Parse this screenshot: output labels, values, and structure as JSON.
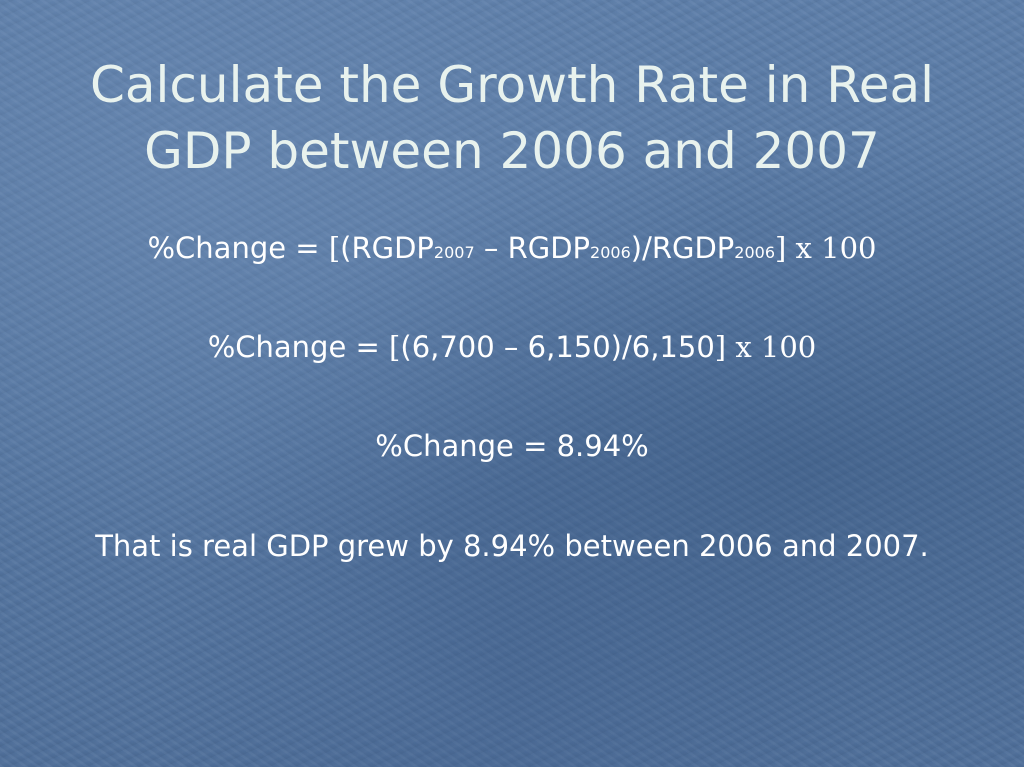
{
  "title": {
    "line1": "Calculate the Growth Rate in Real",
    "line2": "GDP between 2006 and 2007"
  },
  "formula": {
    "prefix": "%Change = ",
    "open_bracket": "[",
    "open_paren": "(",
    "term1": "RGDP",
    "term1_sub": "2007",
    "minus": " – ",
    "term2": "RGDP",
    "term2_sub": "2006",
    "close_paren_div": ")/",
    "term3": "RGDP",
    "term3_sub": "2006",
    "close_bracket": "]",
    "times": " x 100"
  },
  "substitution": {
    "prefix": "%Change = ",
    "open_bracket": "[",
    "expression": "(6,700 – 6,150)/6,150",
    "close_bracket": "]",
    "times": " x 100"
  },
  "result": {
    "text": "%Change = 8.94%"
  },
  "conclusion": {
    "text": "That is real GDP grew by 8.94% between 2006 and 2007."
  }
}
